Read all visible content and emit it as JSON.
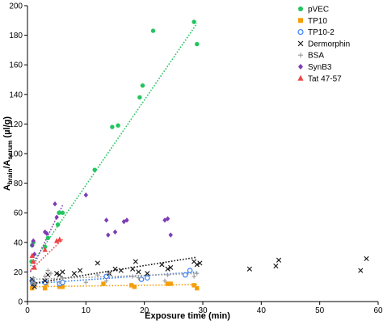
{
  "chart_data": {
    "type": "scatter",
    "xlabel": "Exposure time (min)",
    "ylabel": {
      "main": "A",
      "sub1": "brain",
      "mid": "/A",
      "sub2": "serum",
      "unit": " (µl/g)"
    },
    "xlim": [
      0,
      60
    ],
    "ylim": [
      0,
      200
    ],
    "xticks": [
      0,
      10,
      20,
      30,
      40,
      50,
      60
    ],
    "yticks": [
      0,
      20,
      40,
      60,
      80,
      100,
      120,
      140,
      160,
      180,
      200
    ],
    "legend_position": "top-right",
    "series": [
      {
        "name": "pVEC",
        "marker": "circle",
        "color": "#22c55e",
        "points": [
          [
            0.7,
            27
          ],
          [
            0.8,
            38
          ],
          [
            1,
            40
          ],
          [
            3,
            37
          ],
          [
            3.5,
            43
          ],
          [
            5.2,
            52
          ],
          [
            5.4,
            60
          ],
          [
            6,
            60
          ],
          [
            11.5,
            89
          ],
          [
            14.5,
            118
          ],
          [
            15.5,
            119
          ],
          [
            19.2,
            138
          ],
          [
            19.7,
            146
          ],
          [
            21.5,
            183
          ],
          [
            28.5,
            189
          ],
          [
            29,
            174
          ]
        ],
        "trend": [
          [
            0.5,
            24
          ],
          [
            29,
            188
          ]
        ]
      },
      {
        "name": "TP10",
        "marker": "square",
        "color": "#f59e0b",
        "points": [
          [
            0.8,
            9
          ],
          [
            1,
            11
          ],
          [
            3,
            9
          ],
          [
            3.2,
            12
          ],
          [
            5.5,
            10
          ],
          [
            6,
            10
          ],
          [
            13,
            12
          ],
          [
            17.8,
            11
          ],
          [
            18.3,
            10
          ],
          [
            24,
            12
          ],
          [
            24.5,
            12
          ],
          [
            28.5,
            11
          ],
          [
            29,
            9
          ]
        ],
        "trend": [
          [
            0.5,
            10
          ],
          [
            29,
            11.5
          ]
        ]
      },
      {
        "name": "TP10-2",
        "marker": "open-circle",
        "color": "#3b82f6",
        "points": [
          [
            0.8,
            14
          ],
          [
            1,
            12
          ],
          [
            3,
            13
          ],
          [
            5.5,
            12
          ],
          [
            6,
            13
          ],
          [
            13.5,
            17
          ],
          [
            19.5,
            15
          ],
          [
            20.5,
            16
          ],
          [
            27,
            18
          ],
          [
            27.8,
            21
          ]
        ],
        "trend": [
          [
            0.5,
            12
          ],
          [
            29,
            20
          ]
        ]
      },
      {
        "name": "Dermorphin",
        "marker": "x",
        "color": "#111111",
        "points": [
          [
            0.8,
            15
          ],
          [
            1,
            12
          ],
          [
            1.2,
            10
          ],
          [
            3,
            14
          ],
          [
            3.5,
            18
          ],
          [
            5,
            19
          ],
          [
            5.5,
            18
          ],
          [
            6,
            20
          ],
          [
            8,
            19
          ],
          [
            9,
            21
          ],
          [
            12,
            26
          ],
          [
            14,
            19
          ],
          [
            15,
            22
          ],
          [
            16,
            21
          ],
          [
            18,
            22
          ],
          [
            18.5,
            27
          ],
          [
            19,
            20
          ],
          [
            20.5,
            19
          ],
          [
            23,
            25
          ],
          [
            24,
            22
          ],
          [
            24.5,
            23
          ],
          [
            28.5,
            27
          ],
          [
            29,
            25
          ],
          [
            29.5,
            26
          ],
          [
            38,
            22
          ],
          [
            42.5,
            24
          ],
          [
            43,
            28
          ],
          [
            57,
            21
          ],
          [
            58,
            29
          ]
        ],
        "trend": [
          [
            0.5,
            12
          ],
          [
            29,
            30
          ]
        ]
      },
      {
        "name": "BSA",
        "marker": "plus",
        "color": "#999999",
        "points": [
          [
            0.8,
            13
          ],
          [
            1,
            16
          ],
          [
            1.2,
            12
          ],
          [
            3,
            17
          ],
          [
            3.5,
            21
          ],
          [
            4,
            19
          ],
          [
            5.5,
            13
          ],
          [
            6,
            16
          ],
          [
            10,
            13
          ],
          [
            12,
            18
          ],
          [
            13.5,
            14
          ],
          [
            14,
            19
          ],
          [
            18,
            17
          ],
          [
            19,
            16
          ],
          [
            23.5,
            14
          ],
          [
            24,
            18
          ],
          [
            28.5,
            17
          ],
          [
            29,
            19
          ]
        ],
        "trend": [
          [
            0.5,
            15
          ],
          [
            29,
            19
          ]
        ]
      },
      {
        "name": "SynB3",
        "marker": "diamond",
        "color": "#7e3bb5",
        "points": [
          [
            0.8,
            38
          ],
          [
            1,
            41
          ],
          [
            1.2,
            32
          ],
          [
            3,
            47
          ],
          [
            3.3,
            46
          ],
          [
            4.7,
            66
          ],
          [
            5,
            57
          ],
          [
            10,
            72
          ],
          [
            13.5,
            55
          ],
          [
            13.8,
            45
          ],
          [
            15,
            47
          ],
          [
            16.5,
            54
          ],
          [
            17,
            55
          ],
          [
            23.5,
            55
          ],
          [
            24,
            56
          ],
          [
            24.5,
            45
          ]
        ],
        "trend": [
          [
            0.5,
            20
          ],
          [
            6,
            65
          ]
        ]
      },
      {
        "name": "Tat 47-57",
        "marker": "triangle",
        "color": "#ef4444",
        "points": [
          [
            0.8,
            31
          ],
          [
            1,
            27
          ],
          [
            1.2,
            23
          ],
          [
            3,
            35
          ],
          [
            5,
            41
          ],
          [
            5.5,
            42
          ]
        ],
        "trend": [
          [
            0.5,
            21
          ],
          [
            6,
            42
          ]
        ]
      }
    ]
  }
}
